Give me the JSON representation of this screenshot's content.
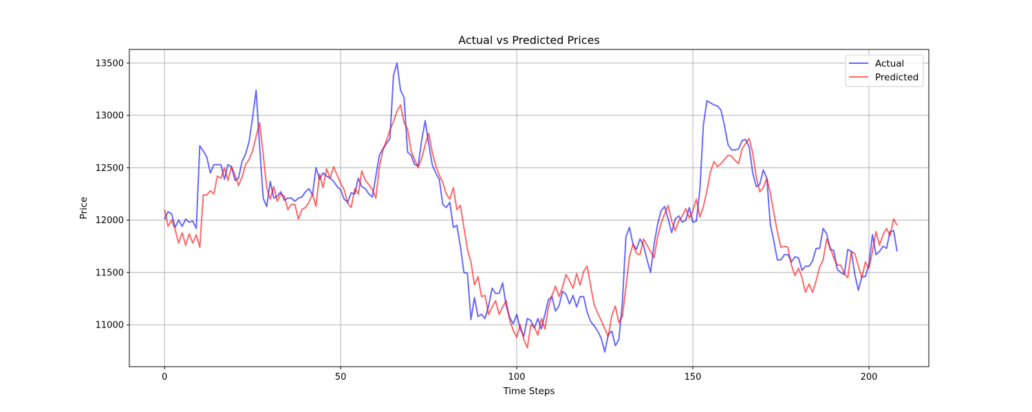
{
  "chart_data": {
    "type": "line",
    "title": "Actual vs Predicted Prices",
    "xlabel": "Time Steps",
    "ylabel": "Price",
    "xlim": [
      -10,
      217
    ],
    "ylim": [
      10600,
      13630
    ],
    "xticks": [
      0,
      50,
      100,
      150,
      200
    ],
    "yticks": [
      11000,
      11500,
      12000,
      12500,
      13000,
      13500
    ],
    "grid": true,
    "legend": "top-right",
    "series": [
      {
        "name": "Actual",
        "color": "#0000ff",
        "values": [
          12010,
          12080,
          12060,
          11930,
          12000,
          11940,
          12010,
          11980,
          11990,
          11920,
          12710,
          12660,
          12600,
          12450,
          12530,
          12530,
          12530,
          12390,
          12530,
          12510,
          12380,
          12400,
          12560,
          12630,
          12750,
          12980,
          13240,
          12700,
          12210,
          12130,
          12370,
          12210,
          12230,
          12270,
          12190,
          12210,
          12210,
          12180,
          12210,
          12220,
          12270,
          12300,
          12240,
          12500,
          12390,
          12450,
          12420,
          12400,
          12370,
          12320,
          12290,
          12200,
          12170,
          12260,
          12250,
          12400,
          12320,
          12300,
          12250,
          12220,
          12420,
          12620,
          12680,
          12730,
          12780,
          13380,
          13500,
          13240,
          13170,
          12650,
          12620,
          12530,
          12520,
          12760,
          12950,
          12730,
          12530,
          12450,
          12390,
          12150,
          12120,
          12170,
          11930,
          11950,
          11750,
          11500,
          11490,
          11050,
          11260,
          11080,
          11100,
          11060,
          11180,
          11350,
          11300,
          11300,
          11400,
          11180,
          11070,
          11010,
          11100,
          10960,
          10890,
          11060,
          11040,
          10970,
          11060,
          10960,
          11100,
          11240,
          11270,
          11130,
          11180,
          11320,
          11290,
          11200,
          11280,
          11170,
          11270,
          11270,
          11120,
          11030,
          10990,
          10940,
          10870,
          10740,
          10910,
          10940,
          10800,
          10860,
          11220,
          11840,
          11930,
          11770,
          11720,
          11820,
          11760,
          11620,
          11500,
          11770,
          11960,
          12090,
          12130,
          12010,
          11880,
          12010,
          12040,
          11980,
          12000,
          12120,
          11980,
          11990,
          12290,
          12910,
          13140,
          13120,
          13100,
          13090,
          13050,
          12900,
          12720,
          12670,
          12670,
          12680,
          12760,
          12770,
          12700,
          12450,
          12320,
          12340,
          12480,
          12400,
          11960,
          11800,
          11620,
          11620,
          11670,
          11670,
          11600,
          11650,
          11640,
          11520,
          11560,
          11560,
          11610,
          11730,
          11730,
          11920,
          11870,
          11720,
          11710,
          11530,
          11500,
          11480,
          11720,
          11700,
          11480,
          11330,
          11460,
          11460,
          11580,
          11860,
          11670,
          11700,
          11750,
          11730,
          11890,
          11900,
          11700
        ]
      },
      {
        "name": "Predicted",
        "color": "#ff0000",
        "values": [
          12100,
          11940,
          12000,
          11910,
          11780,
          11880,
          11760,
          11870,
          11780,
          11860,
          11740,
          12240,
          12240,
          12280,
          12250,
          12420,
          12400,
          12500,
          12380,
          12510,
          12430,
          12330,
          12410,
          12530,
          12580,
          12660,
          12800,
          12930,
          12630,
          12310,
          12200,
          12320,
          12180,
          12250,
          12230,
          12100,
          12150,
          12150,
          12010,
          12100,
          12120,
          12170,
          12250,
          12130,
          12440,
          12310,
          12490,
          12400,
          12510,
          12430,
          12350,
          12290,
          12160,
          12120,
          12300,
          12250,
          12470,
          12380,
          12340,
          12290,
          12210,
          12510,
          12670,
          12760,
          12860,
          12940,
          13040,
          13100,
          12930,
          12870,
          12660,
          12580,
          12500,
          12590,
          12720,
          12830,
          12650,
          12520,
          12430,
          12360,
          12250,
          12200,
          12310,
          12100,
          12140,
          11930,
          11720,
          11600,
          11380,
          11460,
          11270,
          11280,
          11100,
          11170,
          11230,
          11100,
          11170,
          11230,
          11040,
          10950,
          10880,
          11000,
          10860,
          10780,
          11000,
          10980,
          10900,
          11060,
          10960,
          11170,
          11280,
          11370,
          11270,
          11360,
          11480,
          11420,
          11350,
          11490,
          11380,
          11510,
          11560,
          11370,
          11190,
          11110,
          11040,
          10960,
          10890,
          11090,
          11180,
          11020,
          11080,
          11360,
          11650,
          11770,
          11680,
          11670,
          11820,
          11760,
          11700,
          11640,
          11840,
          11970,
          12060,
          12140,
          11990,
          11900,
          11990,
          12040,
          12110,
          12020,
          12090,
          12200,
          12030,
          12130,
          12280,
          12460,
          12560,
          12510,
          12540,
          12580,
          12620,
          12610,
          12570,
          12540,
          12680,
          12730,
          12780,
          12640,
          12410,
          12270,
          12310,
          12400,
          12260,
          12070,
          11890,
          11740,
          11750,
          11740,
          11570,
          11470,
          11540,
          11450,
          11310,
          11390,
          11310,
          11420,
          11550,
          11620,
          11820,
          11740,
          11640,
          11570,
          11570,
          11490,
          11450,
          11700,
          11680,
          11560,
          11450,
          11600,
          11540,
          11700,
          11890,
          11760,
          11860,
          11920,
          11850,
          12010,
          11950
        ]
      }
    ]
  }
}
